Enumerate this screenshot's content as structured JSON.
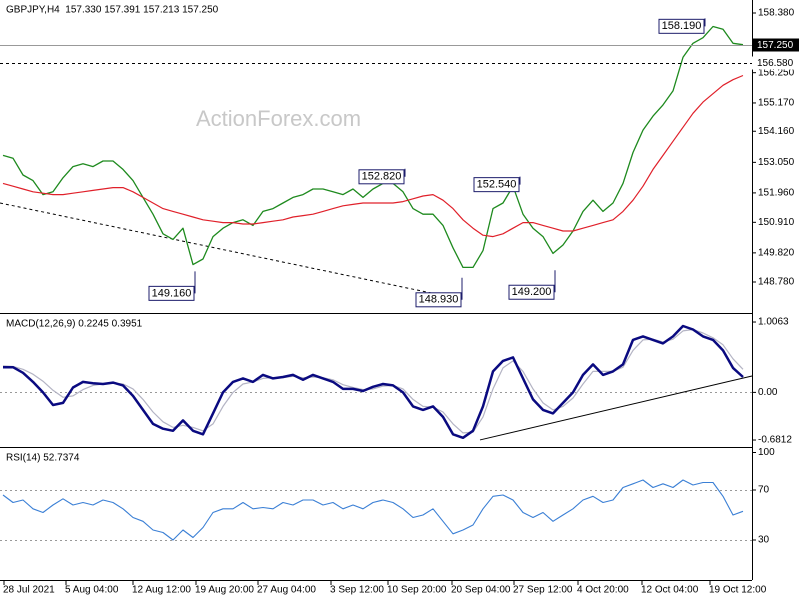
{
  "chart_data": [
    {
      "type": "line",
      "title": "GBPJPY,H4  157.330 157.391 157.213 157.250",
      "watermark": "ActionForex.com",
      "xlim": [
        -0.3,
        74.9
      ],
      "ylim": [
        147.674,
        158.844
      ],
      "yticks": [
        {
          "value": 158.38,
          "label": "158.380"
        },
        {
          "value": 156.25,
          "label": "156.250"
        },
        {
          "value": 155.17,
          "label": "155.170"
        },
        {
          "value": 154.16,
          "label": "154.160"
        },
        {
          "value": 153.05,
          "label": "153.050"
        },
        {
          "value": 151.96,
          "label": "151.960"
        },
        {
          "value": 150.91,
          "label": "150.910"
        },
        {
          "value": 149.82,
          "label": "149.820"
        },
        {
          "value": 148.78,
          "label": "148.780"
        }
      ],
      "x": [
        0,
        1,
        2,
        3,
        4,
        5,
        6,
        7,
        8,
        9,
        10,
        11,
        12,
        13,
        14,
        15,
        16,
        17,
        18,
        19,
        20,
        21,
        22,
        23,
        24,
        25,
        26,
        27,
        28,
        29,
        30,
        31,
        32,
        33,
        34,
        35,
        36,
        37,
        38,
        39,
        40,
        41,
        42,
        43,
        44,
        45,
        46,
        47,
        48,
        49,
        50,
        51,
        52,
        53,
        54,
        55,
        56,
        57,
        58,
        59,
        60,
        61,
        62,
        63,
        64,
        65,
        66,
        67,
        68,
        69,
        70,
        71,
        72,
        73,
        74
      ],
      "series": [
        {
          "color": "#1e8a1e",
          "width": 1.3,
          "values": [
            153.3,
            153.2,
            152.6,
            152.4,
            151.9,
            152.0,
            152.5,
            152.9,
            153.0,
            152.9,
            153.1,
            153.1,
            152.8,
            152.4,
            151.8,
            151.2,
            150.5,
            150.3,
            150.7,
            149.4,
            149.6,
            150.4,
            150.7,
            150.9,
            151.0,
            150.8,
            151.3,
            151.4,
            151.6,
            151.8,
            151.9,
            152.1,
            152.1,
            152.0,
            151.9,
            152.1,
            151.8,
            152.1,
            152.3,
            152.3,
            152.0,
            151.4,
            151.2,
            151.2,
            150.8,
            150.0,
            149.3,
            149.3,
            149.9,
            151.4,
            151.6,
            152.2,
            151.2,
            150.7,
            150.4,
            149.8,
            150.1,
            150.6,
            151.3,
            151.7,
            151.3,
            151.6,
            152.3,
            153.4,
            154.2,
            154.7,
            155.1,
            155.6,
            156.8,
            157.3,
            157.5,
            157.9,
            157.8,
            157.3,
            157.25
          ]
        },
        {
          "color": "#e0202a",
          "width": 1.2,
          "values": [
            152.3,
            152.2,
            152.1,
            152.0,
            151.95,
            151.9,
            151.9,
            151.95,
            152.0,
            152.05,
            152.1,
            152.15,
            152.15,
            152.0,
            151.8,
            151.6,
            151.4,
            151.3,
            151.2,
            151.1,
            151.0,
            150.95,
            150.9,
            150.9,
            150.85,
            150.85,
            150.9,
            150.95,
            151.0,
            151.1,
            151.15,
            151.2,
            151.3,
            151.4,
            151.5,
            151.55,
            151.6,
            151.6,
            151.6,
            151.6,
            151.65,
            151.75,
            151.85,
            151.9,
            151.7,
            151.4,
            151.0,
            150.7,
            150.45,
            150.4,
            150.5,
            150.7,
            150.9,
            150.9,
            150.8,
            150.7,
            150.6,
            150.6,
            150.7,
            150.8,
            150.9,
            151.0,
            151.3,
            151.7,
            152.2,
            152.8,
            153.3,
            153.8,
            154.3,
            154.8,
            155.2,
            155.5,
            155.8,
            156.0,
            156.15
          ]
        }
      ],
      "price_lines": [
        {
          "value": 157.25,
          "label": "157.250",
          "style": "current"
        },
        {
          "value": 156.58,
          "label": "156.580",
          "style": "dashed"
        }
      ],
      "trendlines": [
        {
          "x": [
            -0.3,
            45.2
          ],
          "values": [
            151.6,
            148.21
          ],
          "style": "dashed"
        }
      ],
      "annotations": [
        {
          "label": "158.190",
          "value": 158.19,
          "x": 70.2
        },
        {
          "label": "152.820",
          "value": 152.82,
          "x": 40.2
        },
        {
          "label": "152.540",
          "value": 152.54,
          "x": 51.7
        },
        {
          "label": "149.160",
          "value": 149.16,
          "x": 19.2
        },
        {
          "label": "148.930",
          "value": 148.93,
          "x": 45.9
        },
        {
          "label": "149.200",
          "value": 149.2,
          "x": 55.2
        }
      ]
    },
    {
      "type": "line",
      "title": "MACD(12,26,9) 0.2245 0.3951",
      "xlim": [
        -0.3,
        74.9
      ],
      "ylim": [
        -0.781,
        1.121
      ],
      "yticks": [
        {
          "value": 1.0063,
          "label": "1.0063"
        },
        {
          "value": 0,
          "label": "0.00"
        },
        {
          "value": -0.6812,
          "label": "-0.6812"
        }
      ],
      "levels": [
        0
      ],
      "x": [
        0,
        1,
        2,
        3,
        4,
        5,
        6,
        7,
        8,
        9,
        10,
        11,
        12,
        13,
        14,
        15,
        16,
        17,
        18,
        19,
        20,
        21,
        22,
        23,
        24,
        25,
        26,
        27,
        28,
        29,
        30,
        31,
        32,
        33,
        34,
        35,
        36,
        37,
        38,
        39,
        40,
        41,
        42,
        43,
        44,
        45,
        46,
        47,
        48,
        49,
        50,
        51,
        52,
        53,
        54,
        55,
        56,
        57,
        58,
        59,
        60,
        61,
        62,
        63,
        64,
        65,
        66,
        67,
        68,
        69,
        70,
        71,
        72,
        73,
        74
      ],
      "series": [
        {
          "color": "#b4b4c4",
          "width": 1.2,
          "values": [
            0.38,
            0.37,
            0.33,
            0.26,
            0.16,
            0.03,
            -0.07,
            -0.05,
            0.04,
            0.1,
            0.12,
            0.13,
            0.12,
            0.05,
            -0.1,
            -0.28,
            -0.42,
            -0.5,
            -0.47,
            -0.5,
            -0.55,
            -0.45,
            -0.2,
            0.0,
            0.12,
            0.15,
            0.2,
            0.21,
            0.21,
            0.23,
            0.21,
            0.22,
            0.21,
            0.18,
            0.11,
            0.07,
            0.04,
            0.05,
            0.09,
            0.1,
            0.05,
            -0.1,
            -0.2,
            -0.21,
            -0.28,
            -0.45,
            -0.58,
            -0.57,
            -0.35,
            0.05,
            0.35,
            0.45,
            0.3,
            0.05,
            -0.15,
            -0.25,
            -0.2,
            -0.08,
            0.12,
            0.3,
            0.3,
            0.3,
            0.36,
            0.6,
            0.75,
            0.76,
            0.72,
            0.76,
            0.88,
            0.9,
            0.85,
            0.78,
            0.68,
            0.48,
            0.33
          ]
        },
        {
          "color": "#0a0a80",
          "width": 2.5,
          "values": [
            0.36,
            0.36,
            0.28,
            0.15,
            0.0,
            -0.18,
            -0.15,
            0.07,
            0.15,
            0.13,
            0.12,
            0.14,
            0.1,
            -0.05,
            -0.25,
            -0.45,
            -0.52,
            -0.55,
            -0.4,
            -0.55,
            -0.6,
            -0.3,
            0.0,
            0.15,
            0.2,
            0.15,
            0.25,
            0.2,
            0.22,
            0.25,
            0.18,
            0.25,
            0.2,
            0.15,
            0.05,
            0.05,
            0.02,
            0.08,
            0.12,
            0.1,
            0.0,
            -0.2,
            -0.25,
            -0.2,
            -0.35,
            -0.6,
            -0.65,
            -0.55,
            -0.2,
            0.3,
            0.45,
            0.5,
            0.2,
            -0.1,
            -0.25,
            -0.3,
            -0.15,
            0.0,
            0.25,
            0.4,
            0.25,
            0.3,
            0.4,
            0.75,
            0.8,
            0.75,
            0.7,
            0.8,
            0.95,
            0.9,
            0.8,
            0.75,
            0.6,
            0.35,
            0.22
          ]
        }
      ],
      "trendlines": [
        {
          "x": [
            47.7,
            74.9
          ],
          "values": [
            -0.68,
            0.235
          ],
          "style": "solid"
        }
      ]
    },
    {
      "type": "line",
      "title": "RSI(14) 52.7374",
      "xlim": [
        -0.3,
        74.9
      ],
      "ylim": [
        -2,
        103.6
      ],
      "yticks": [
        100,
        70,
        30
      ],
      "levels": [
        70,
        30
      ],
      "x": [
        0,
        1,
        2,
        3,
        4,
        5,
        6,
        7,
        8,
        9,
        10,
        11,
        12,
        13,
        14,
        15,
        16,
        17,
        18,
        19,
        20,
        21,
        22,
        23,
        24,
        25,
        26,
        27,
        28,
        29,
        30,
        31,
        32,
        33,
        34,
        35,
        36,
        37,
        38,
        39,
        40,
        41,
        42,
        43,
        44,
        45,
        46,
        47,
        48,
        49,
        50,
        51,
        52,
        53,
        54,
        55,
        56,
        57,
        58,
        59,
        60,
        61,
        62,
        63,
        64,
        65,
        66,
        67,
        68,
        69,
        70,
        71,
        72,
        73,
        74
      ],
      "series": [
        {
          "color": "#3a7fd5",
          "width": 1.1,
          "values": [
            66,
            60,
            62,
            55,
            52,
            58,
            63,
            58,
            60,
            58,
            62,
            60,
            55,
            48,
            45,
            38,
            36,
            30,
            38,
            32,
            40,
            52,
            55,
            55,
            60,
            55,
            56,
            55,
            60,
            58,
            62,
            62,
            58,
            60,
            55,
            58,
            55,
            60,
            62,
            60,
            55,
            48,
            50,
            55,
            45,
            35,
            38,
            42,
            55,
            65,
            66,
            62,
            52,
            48,
            52,
            45,
            50,
            55,
            62,
            65,
            60,
            62,
            72,
            75,
            78,
            72,
            75,
            72,
            78,
            74,
            76,
            76,
            65,
            50,
            53
          ]
        }
      ],
      "xticks": [
        {
          "value": 0.1,
          "label": "28 Jul 2021"
        },
        {
          "value": 6.3,
          "label": "5 Aug 04:00"
        },
        {
          "value": 13.0,
          "label": "12 Aug 12:00"
        },
        {
          "value": 19.3,
          "label": "19 Aug 20:00"
        },
        {
          "value": 25.5,
          "label": "27 Aug 04:00"
        },
        {
          "value": 32.8,
          "label": "3 Sep 12:00"
        },
        {
          "value": 38.5,
          "label": "10 Sep 20:00"
        },
        {
          "value": 44.9,
          "label": "20 Sep 04:00"
        },
        {
          "value": 51.1,
          "label": "27 Sep 12:00"
        },
        {
          "value": 57.5,
          "label": "4 Oct 20:00"
        },
        {
          "value": 63.9,
          "label": "12 Oct 04:00"
        },
        {
          "value": 70.7,
          "label": "19 Oct 12:00"
        }
      ]
    }
  ]
}
